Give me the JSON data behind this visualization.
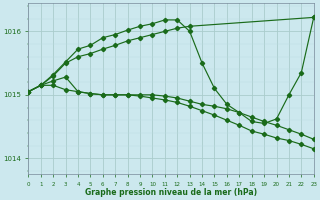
{
  "title": "Graphe pression niveau de la mer (hPa)",
  "bg_color": "#cce8ee",
  "grid_major_color": "#aacccc",
  "grid_minor_color": "#bbdde4",
  "line_color": "#1a6b1a",
  "xlim": [
    0,
    23
  ],
  "ylim": [
    1013.75,
    1016.45
  ],
  "yticks": [
    1014,
    1015,
    1016
  ],
  "xticks": [
    0,
    1,
    2,
    3,
    4,
    5,
    6,
    7,
    8,
    9,
    10,
    11,
    12,
    13,
    14,
    15,
    16,
    17,
    18,
    19,
    20,
    21,
    22,
    23
  ],
  "line1_x": [
    0,
    1,
    2,
    3,
    4,
    5,
    6,
    7,
    8,
    9,
    10,
    11,
    12,
    13,
    23
  ],
  "line1_y": [
    1015.05,
    1015.15,
    1015.3,
    1015.5,
    1015.6,
    1015.65,
    1015.72,
    1015.78,
    1015.85,
    1015.9,
    1015.95,
    1016.0,
    1016.05,
    1016.08,
    1016.22
  ],
  "line2_x": [
    0,
    1,
    2,
    3,
    4,
    5,
    6,
    7,
    8,
    9,
    10,
    11,
    12,
    13,
    14,
    15,
    16,
    17,
    18,
    19,
    20,
    21,
    22,
    23
  ],
  "line2_y": [
    1015.05,
    1015.15,
    1015.32,
    1015.52,
    1015.72,
    1015.78,
    1015.9,
    1015.95,
    1016.02,
    1016.08,
    1016.12,
    1016.18,
    1016.18,
    1016.0,
    1015.5,
    1015.1,
    1014.85,
    1014.72,
    1014.58,
    1014.55,
    1014.62,
    1015.0,
    1015.35,
    1016.22
  ],
  "line3_x": [
    0,
    1,
    2,
    3,
    4,
    5,
    6,
    7,
    8,
    9,
    10,
    11,
    12,
    13,
    14,
    15,
    16,
    17,
    18,
    19,
    20,
    21,
    22,
    23
  ],
  "line3_y": [
    1015.05,
    1015.15,
    1015.15,
    1015.08,
    1015.05,
    1015.02,
    1015.0,
    1015.0,
    1015.0,
    1015.0,
    1015.0,
    1014.98,
    1014.95,
    1014.9,
    1014.85,
    1014.82,
    1014.78,
    1014.72,
    1014.65,
    1014.58,
    1014.52,
    1014.45,
    1014.38,
    1014.3
  ],
  "line4_x": [
    0,
    1,
    2,
    3,
    4,
    5,
    6,
    7,
    8,
    9,
    10,
    11,
    12,
    13,
    14,
    15,
    16,
    17,
    18,
    19,
    20,
    21,
    22,
    23
  ],
  "line4_y": [
    1015.05,
    1015.15,
    1015.22,
    1015.28,
    1015.05,
    1015.02,
    1015.0,
    1015.0,
    1015.0,
    1014.98,
    1014.95,
    1014.92,
    1014.88,
    1014.82,
    1014.75,
    1014.68,
    1014.6,
    1014.52,
    1014.43,
    1014.38,
    1014.32,
    1014.28,
    1014.22,
    1014.15
  ]
}
